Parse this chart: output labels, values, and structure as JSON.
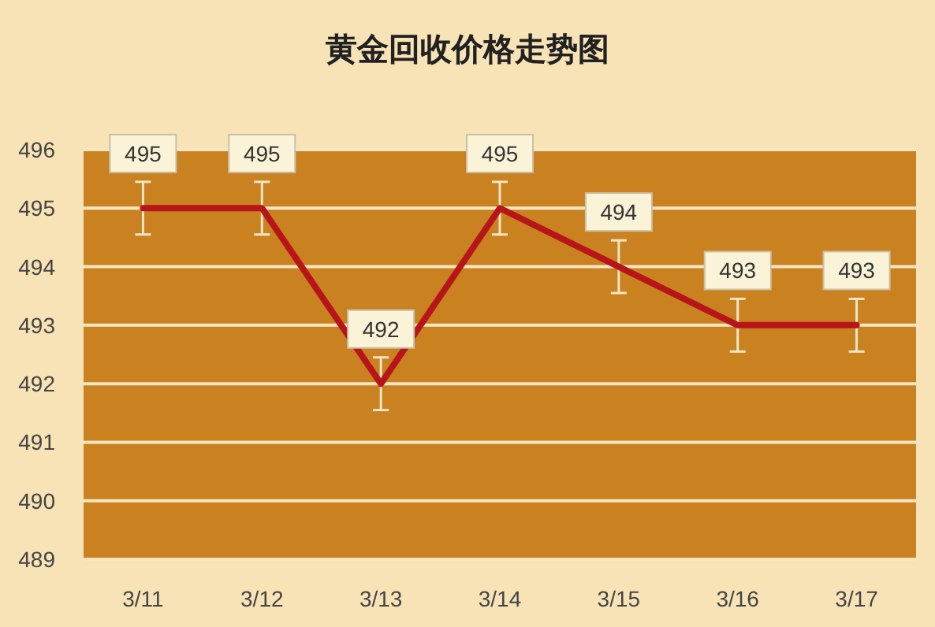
{
  "chart_data": {
    "type": "line",
    "title": "黄金回收价格走势图",
    "categories": [
      "3/11",
      "3/12",
      "3/13",
      "3/14",
      "3/15",
      "3/16",
      "3/17"
    ],
    "series": [
      {
        "color": "#b8151b",
        "values": [
          495,
          495,
          492,
          495,
          494,
          493,
          493
        ],
        "errors": [
          0.45,
          0.45,
          0.45,
          0.45,
          0.45,
          0.45,
          0.45
        ]
      }
    ],
    "ylim": [
      489,
      496
    ],
    "yticks": [
      489,
      490,
      491,
      492,
      493,
      494,
      495,
      496
    ],
    "grid": "y",
    "data_labels": true,
    "marker": "none",
    "line_style": "solid"
  }
}
